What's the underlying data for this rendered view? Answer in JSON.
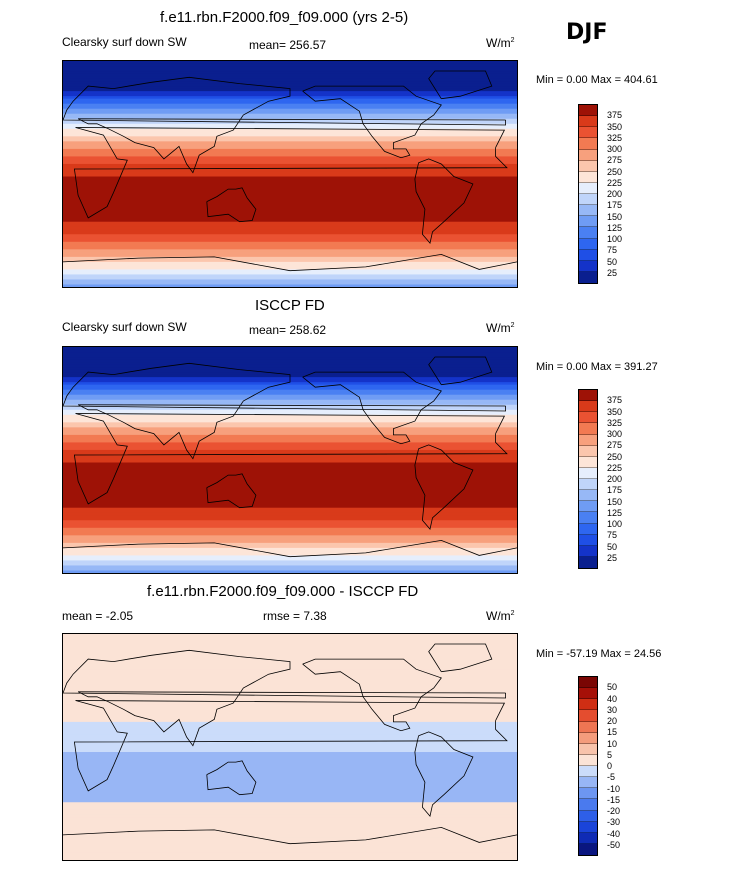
{
  "season": "DJF",
  "panels": [
    {
      "title": "f.e11.rbn.F2000.f09_f09.000 (yrs 2-5)",
      "variable": "Clearsky surf down SW",
      "stat": "mean= 256.57",
      "units_base": "W/m",
      "units_exp": "2",
      "minmax": "Min =   0.00 Max = 404.61"
    },
    {
      "title": "ISCCP FD",
      "variable": "Clearsky surf down SW",
      "stat": "mean= 258.62",
      "units_base": "W/m",
      "units_exp": "2",
      "minmax": "Min =   0.00 Max = 391.27"
    },
    {
      "title": "f.e11.rbn.F2000.f09_f09.000 - ISCCP FD",
      "variable": "mean =  -2.05",
      "stat": "rmse =   7.38",
      "units_base": "W/m",
      "units_exp": "2",
      "minmax": "Min = -57.19 Max =  24.56"
    }
  ],
  "chart_data": [
    {
      "type": "heatmap",
      "title": "f.e11.rbn.F2000.f09_f09.000 (yrs 2-5)",
      "variable": "Clearsky surf down SW",
      "units": "W/m2",
      "mean": 256.57,
      "min": 0.0,
      "max": 404.61,
      "levels": [
        25,
        50,
        75,
        100,
        125,
        150,
        175,
        200,
        225,
        250,
        275,
        300,
        325,
        350,
        375
      ],
      "colors": [
        "#0a1f8f",
        "#1433c9",
        "#1f4fe6",
        "#2e66f0",
        "#4a80f2",
        "#6f9cf4",
        "#97b8f6",
        "#c0d5fa",
        "#e6eefc",
        "#fde5d8",
        "#fbc6ad",
        "#f7a07d",
        "#f27a52",
        "#ea5232",
        "#d93a1a",
        "#9e1206"
      ]
    },
    {
      "type": "heatmap",
      "title": "ISCCP FD",
      "variable": "Clearsky surf down SW",
      "units": "W/m2",
      "mean": 258.62,
      "min": 0.0,
      "max": 391.27,
      "levels": [
        25,
        50,
        75,
        100,
        125,
        150,
        175,
        200,
        225,
        250,
        275,
        300,
        325,
        350,
        375
      ],
      "colors": [
        "#0a1f8f",
        "#1433c9",
        "#1f4fe6",
        "#2e66f0",
        "#4a80f2",
        "#6f9cf4",
        "#97b8f6",
        "#c0d5fa",
        "#e6eefc",
        "#fde5d8",
        "#fbc6ad",
        "#f7a07d",
        "#f27a52",
        "#ea5232",
        "#d93a1a",
        "#9e1206"
      ]
    },
    {
      "type": "heatmap",
      "title": "f.e11.rbn.F2000.f09_f09.000 - ISCCP FD",
      "units": "W/m2",
      "mean": -2.05,
      "rmse": 7.38,
      "min": -57.19,
      "max": 24.56,
      "levels": [
        "-50",
        "-40",
        "-30",
        "-20",
        "-15",
        "-10",
        "-5",
        "0",
        "5",
        "10",
        "15",
        "20",
        "30",
        "40",
        "50"
      ],
      "colors": [
        "#0a1680",
        "#0f2bb5",
        "#1a44d9",
        "#2e5fe8",
        "#4a7aee",
        "#6d96f1",
        "#98b6f5",
        "#cbdcfa",
        "#fbe3d6",
        "#f8c3ab",
        "#f49c7c",
        "#ee7553",
        "#e44d2f",
        "#cf2e14",
        "#a61008",
        "#7a0604"
      ]
    }
  ]
}
